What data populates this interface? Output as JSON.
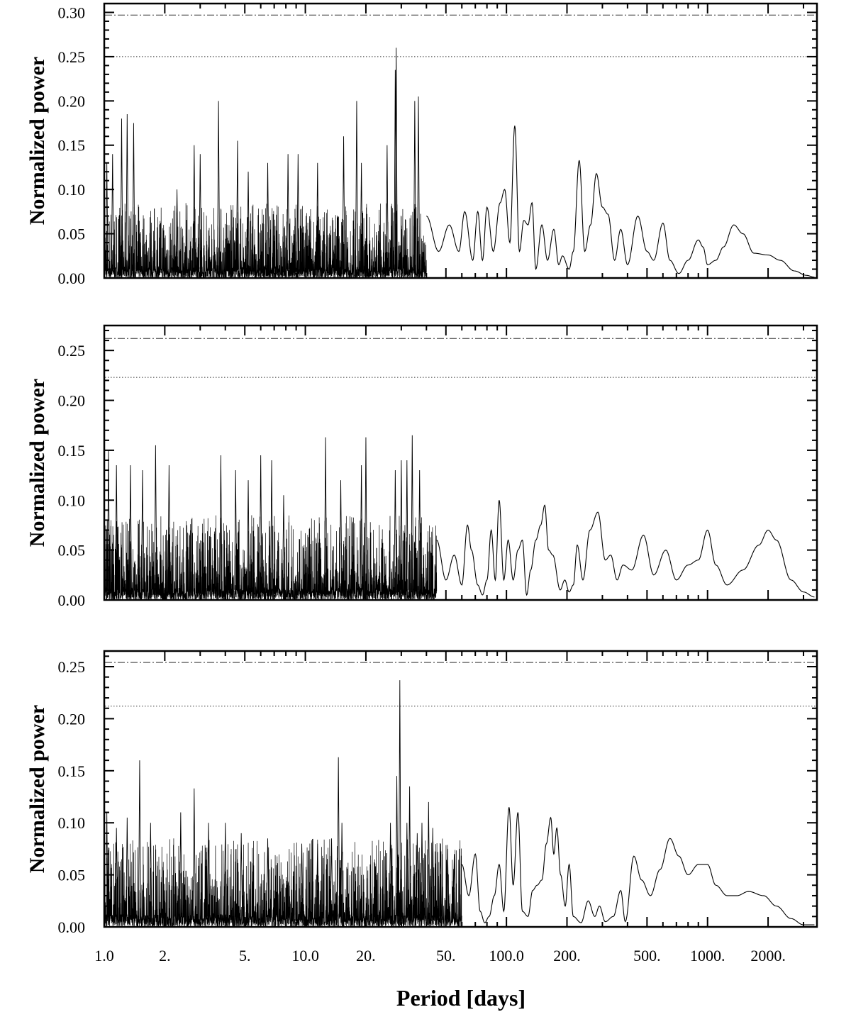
{
  "figure": {
    "xlabel": "Period [days]",
    "x_tick_labels": [
      "1.0",
      "2.",
      "5.",
      "10.0",
      "20.",
      "50.",
      "100.0",
      "200.",
      "500.",
      "1000.",
      "2000."
    ]
  },
  "chart_data": [
    {
      "type": "line",
      "title": "",
      "ylabel": "Normalized power",
      "xlabel": "",
      "x_scale": "log",
      "xlim": [
        1.0,
        3500
      ],
      "ylim": [
        0.0,
        0.31
      ],
      "y_ticks": [
        0.0,
        0.05,
        0.1,
        0.15,
        0.2,
        0.25,
        0.3
      ],
      "y_tick_labels": [
        "0.00",
        "0.05",
        "0.10",
        "0.15",
        "0.20",
        "0.25",
        "0.30"
      ],
      "thresholds": [
        {
          "style": "dash-dot",
          "value": 0.297
        },
        {
          "style": "dotted",
          "value": 0.25
        }
      ],
      "peaks": [
        [
          1.03,
          0.13
        ],
        [
          1.1,
          0.14
        ],
        [
          1.22,
          0.18
        ],
        [
          1.3,
          0.185
        ],
        [
          1.4,
          0.175
        ],
        [
          2.3,
          0.1
        ],
        [
          2.8,
          0.15
        ],
        [
          3.0,
          0.14
        ],
        [
          3.7,
          0.2
        ],
        [
          4.6,
          0.155
        ],
        [
          5.2,
          0.12
        ],
        [
          6.5,
          0.13
        ],
        [
          8.2,
          0.14
        ],
        [
          9.2,
          0.14
        ],
        [
          11.5,
          0.13
        ],
        [
          15.5,
          0.16
        ],
        [
          18.0,
          0.2
        ],
        [
          19.0,
          0.13
        ],
        [
          25.5,
          0.15
        ],
        [
          28.0,
          0.235
        ],
        [
          28.3,
          0.26
        ],
        [
          35.0,
          0.2
        ],
        [
          36.5,
          0.205
        ]
      ],
      "points": [
        [
          40,
          0.07
        ],
        [
          46,
          0.03
        ],
        [
          52,
          0.06
        ],
        [
          58,
          0.03
        ],
        [
          62,
          0.075
        ],
        [
          68,
          0.02
        ],
        [
          72,
          0.075
        ],
        [
          76,
          0.02
        ],
        [
          80,
          0.08
        ],
        [
          86,
          0.03
        ],
        [
          93,
          0.085
        ],
        [
          98,
          0.1
        ],
        [
          104,
          0.04
        ],
        [
          110,
          0.172
        ],
        [
          116,
          0.03
        ],
        [
          122,
          0.065
        ],
        [
          128,
          0.06
        ],
        [
          134,
          0.085
        ],
        [
          140,
          0.01
        ],
        [
          150,
          0.06
        ],
        [
          160,
          0.02
        ],
        [
          172,
          0.055
        ],
        [
          182,
          0.015
        ],
        [
          190,
          0.025
        ],
        [
          205,
          0.01
        ],
        [
          215,
          0.03
        ],
        [
          230,
          0.133
        ],
        [
          245,
          0.03
        ],
        [
          262,
          0.06
        ],
        [
          280,
          0.118
        ],
        [
          300,
          0.08
        ],
        [
          320,
          0.072
        ],
        [
          345,
          0.02
        ],
        [
          370,
          0.055
        ],
        [
          400,
          0.015
        ],
        [
          450,
          0.07
        ],
        [
          500,
          0.03
        ],
        [
          540,
          0.02
        ],
        [
          600,
          0.062
        ],
        [
          650,
          0.02
        ],
        [
          720,
          0.005
        ],
        [
          800,
          0.02
        ],
        [
          900,
          0.043
        ],
        [
          950,
          0.035
        ],
        [
          1000,
          0.015
        ],
        [
          1100,
          0.02
        ],
        [
          1200,
          0.035
        ],
        [
          1350,
          0.06
        ],
        [
          1500,
          0.05
        ],
        [
          1700,
          0.028
        ],
        [
          2000,
          0.026
        ],
        [
          2300,
          0.02
        ],
        [
          2700,
          0.008
        ],
        [
          3100,
          0.003
        ],
        [
          3400,
          0.001
        ]
      ]
    },
    {
      "type": "line",
      "title": "",
      "ylabel": "Normalized power",
      "xlabel": "",
      "x_scale": "log",
      "xlim": [
        1.0,
        3500
      ],
      "ylim": [
        0.0,
        0.275
      ],
      "y_ticks": [
        0.0,
        0.05,
        0.1,
        0.15,
        0.2,
        0.25
      ],
      "y_tick_labels": [
        "0.00",
        "0.05",
        "0.10",
        "0.15",
        "0.20",
        "0.25"
      ],
      "thresholds": [
        {
          "style": "dash-dot",
          "value": 0.262
        },
        {
          "style": "dotted",
          "value": 0.223
        }
      ],
      "peaks": [
        [
          1.05,
          0.15
        ],
        [
          1.15,
          0.135
        ],
        [
          1.35,
          0.135
        ],
        [
          1.55,
          0.13
        ],
        [
          1.8,
          0.155
        ],
        [
          2.1,
          0.135
        ],
        [
          3.8,
          0.145
        ],
        [
          4.5,
          0.13
        ],
        [
          5.2,
          0.12
        ],
        [
          6.0,
          0.145
        ],
        [
          6.8,
          0.14
        ],
        [
          7.8,
          0.105
        ],
        [
          12.6,
          0.163
        ],
        [
          15.0,
          0.12
        ],
        [
          19.0,
          0.135
        ],
        [
          20.0,
          0.163
        ],
        [
          28.0,
          0.13
        ],
        [
          30.0,
          0.14
        ],
        [
          32.0,
          0.14
        ],
        [
          34.0,
          0.165
        ],
        [
          37.0,
          0.13
        ]
      ],
      "points": [
        [
          45,
          0.06
        ],
        [
          50,
          0.02
        ],
        [
          55,
          0.045
        ],
        [
          60,
          0.015
        ],
        [
          64,
          0.075
        ],
        [
          67,
          0.05
        ],
        [
          72,
          0.015
        ],
        [
          76,
          0.005
        ],
        [
          80,
          0.02
        ],
        [
          84,
          0.07
        ],
        [
          88,
          0.02
        ],
        [
          92,
          0.1
        ],
        [
          97,
          0.02
        ],
        [
          102,
          0.06
        ],
        [
          108,
          0.02
        ],
        [
          114,
          0.05
        ],
        [
          120,
          0.06
        ],
        [
          126,
          0.005
        ],
        [
          132,
          0.03
        ],
        [
          140,
          0.06
        ],
        [
          148,
          0.075
        ],
        [
          155,
          0.095
        ],
        [
          162,
          0.05
        ],
        [
          170,
          0.045
        ],
        [
          185,
          0.01
        ],
        [
          195,
          0.02
        ],
        [
          205,
          0.008
        ],
        [
          215,
          0.015
        ],
        [
          225,
          0.055
        ],
        [
          240,
          0.02
        ],
        [
          260,
          0.07
        ],
        [
          285,
          0.088
        ],
        [
          310,
          0.04
        ],
        [
          330,
          0.045
        ],
        [
          355,
          0.02
        ],
        [
          380,
          0.035
        ],
        [
          420,
          0.03
        ],
        [
          480,
          0.065
        ],
        [
          540,
          0.025
        ],
        [
          620,
          0.05
        ],
        [
          700,
          0.02
        ],
        [
          800,
          0.035
        ],
        [
          900,
          0.04
        ],
        [
          1000,
          0.07
        ],
        [
          1100,
          0.035
        ],
        [
          1250,
          0.015
        ],
        [
          1500,
          0.03
        ],
        [
          1800,
          0.055
        ],
        [
          2000,
          0.07
        ],
        [
          2200,
          0.06
        ],
        [
          2600,
          0.02
        ],
        [
          3000,
          0.008
        ],
        [
          3400,
          0.003
        ]
      ]
    },
    {
      "type": "line",
      "title": "",
      "ylabel": "Normalized power",
      "xlabel": "Period [days]",
      "x_scale": "log",
      "xlim": [
        1.0,
        3500
      ],
      "ylim": [
        0.0,
        0.265
      ],
      "y_ticks": [
        0.0,
        0.05,
        0.1,
        0.15,
        0.2,
        0.25
      ],
      "y_tick_labels": [
        "0.00",
        "0.05",
        "0.10",
        "0.15",
        "0.20",
        "0.25"
      ],
      "thresholds": [
        {
          "style": "dash-dot",
          "value": 0.254
        },
        {
          "style": "dotted",
          "value": 0.212
        }
      ],
      "peaks": [
        [
          1.03,
          0.11
        ],
        [
          1.15,
          0.095
        ],
        [
          1.3,
          0.105
        ],
        [
          1.5,
          0.16
        ],
        [
          1.7,
          0.1
        ],
        [
          2.4,
          0.11
        ],
        [
          2.8,
          0.133
        ],
        [
          3.3,
          0.1
        ],
        [
          4.0,
          0.1
        ],
        [
          4.8,
          0.09
        ],
        [
          6.5,
          0.085
        ],
        [
          9.6,
          0.08
        ],
        [
          11.5,
          0.08
        ],
        [
          13.5,
          0.085
        ],
        [
          14.6,
          0.163
        ],
        [
          15.2,
          0.1
        ],
        [
          26.5,
          0.1
        ],
        [
          28.5,
          0.145
        ],
        [
          29.5,
          0.237
        ],
        [
          32,
          0.1
        ],
        [
          33.0,
          0.135
        ],
        [
          36,
          0.09
        ],
        [
          38.0,
          0.1
        ],
        [
          41.0,
          0.12
        ],
        [
          43,
          0.095
        ],
        [
          47,
          0.08
        ],
        [
          51,
          0.075
        ],
        [
          55,
          0.07
        ]
      ],
      "points": [
        [
          60,
          0.06
        ],
        [
          65,
          0.03
        ],
        [
          70,
          0.07
        ],
        [
          74,
          0.015
        ],
        [
          78,
          0.004
        ],
        [
          82,
          0.01
        ],
        [
          87,
          0.03
        ],
        [
          92,
          0.06
        ],
        [
          97,
          0.015
        ],
        [
          103,
          0.115
        ],
        [
          108,
          0.04
        ],
        [
          114,
          0.11
        ],
        [
          120,
          0.015
        ],
        [
          128,
          0.01
        ],
        [
          135,
          0.035
        ],
        [
          142,
          0.04
        ],
        [
          150,
          0.045
        ],
        [
          158,
          0.08
        ],
        [
          166,
          0.105
        ],
        [
          172,
          0.07
        ],
        [
          178,
          0.095
        ],
        [
          186,
          0.05
        ],
        [
          196,
          0.02
        ],
        [
          205,
          0.06
        ],
        [
          215,
          0.01
        ],
        [
          235,
          0.004
        ],
        [
          255,
          0.025
        ],
        [
          275,
          0.01
        ],
        [
          290,
          0.02
        ],
        [
          310,
          0.005
        ],
        [
          340,
          0.01
        ],
        [
          370,
          0.035
        ],
        [
          390,
          0.005
        ],
        [
          430,
          0.068
        ],
        [
          470,
          0.045
        ],
        [
          520,
          0.03
        ],
        [
          580,
          0.055
        ],
        [
          650,
          0.085
        ],
        [
          720,
          0.068
        ],
        [
          800,
          0.05
        ],
        [
          900,
          0.06
        ],
        [
          1000,
          0.06
        ],
        [
          1100,
          0.04
        ],
        [
          1250,
          0.03
        ],
        [
          1400,
          0.03
        ],
        [
          1600,
          0.034
        ],
        [
          1900,
          0.03
        ],
        [
          2200,
          0.02
        ],
        [
          2600,
          0.008
        ],
        [
          3000,
          0.002
        ],
        [
          3400,
          0.002
        ]
      ]
    }
  ]
}
